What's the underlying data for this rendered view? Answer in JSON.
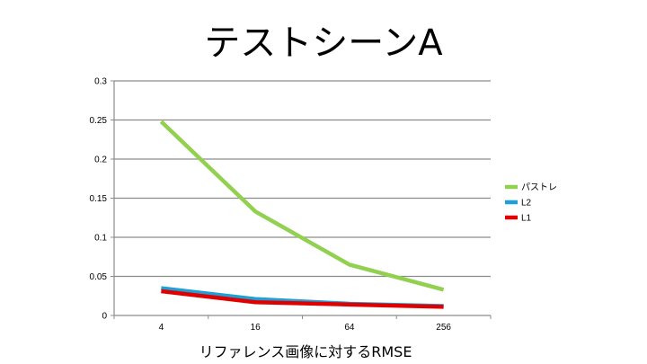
{
  "chart_data": {
    "type": "line",
    "title": "テストシーンA",
    "xlabel": "リファレンス画像に対するRMSE",
    "ylabel": "",
    "categories": [
      "4",
      "16",
      "64",
      "256"
    ],
    "ylim": [
      0,
      0.3
    ],
    "yticks": [
      "0",
      "0.05",
      "0.1",
      "0.15",
      "0.2",
      "0.25",
      "0.3"
    ],
    "grid": true,
    "legend_position": "right",
    "series": [
      {
        "name": "パストレ",
        "color": "#92d050",
        "values": [
          0.248,
          0.133,
          0.065,
          0.033
        ]
      },
      {
        "name": "L2",
        "color": "#1f9fd8",
        "values": [
          0.035,
          0.021,
          0.015,
          0.012
        ]
      },
      {
        "name": "L1",
        "color": "#e00000",
        "values": [
          0.031,
          0.017,
          0.014,
          0.011
        ]
      }
    ]
  }
}
